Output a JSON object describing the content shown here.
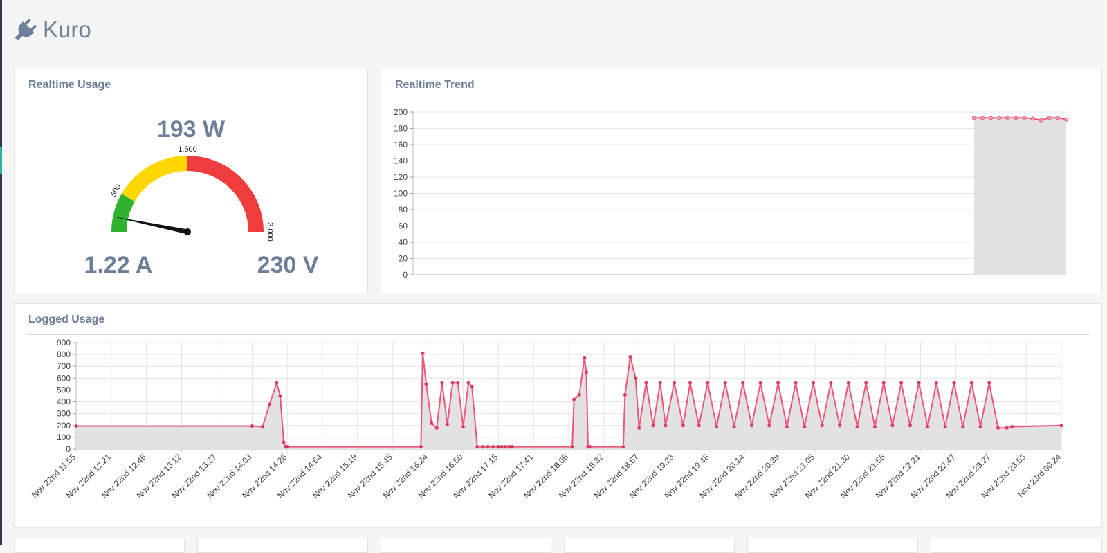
{
  "app": {
    "title": "Kuro",
    "logo_icon": "plug-icon"
  },
  "realtime_usage": {
    "title": "Realtime Usage",
    "power": "193 W",
    "current": "1.22 A",
    "voltage": "230 V",
    "gauge": {
      "value": 193,
      "min": 0,
      "max": 3000,
      "ticks": [
        "500",
        "1,500",
        "3,000"
      ],
      "bands": [
        {
          "from": 0,
          "to": 500,
          "color": "#2fb32f"
        },
        {
          "from": 500,
          "to": 1500,
          "color": "#ffd700"
        },
        {
          "from": 1500,
          "to": 3000,
          "color": "#ef3c3c"
        }
      ]
    }
  },
  "realtime_trend": {
    "title": "Realtime Trend",
    "chart_data": {
      "type": "area",
      "ylim": [
        0,
        200
      ],
      "yticks": [
        0,
        20,
        40,
        60,
        80,
        100,
        120,
        140,
        160,
        180,
        200
      ],
      "x": [
        0,
        1,
        2,
        3,
        4,
        5,
        6,
        7,
        8,
        9,
        10,
        11
      ],
      "xlim": [
        -67,
        11
      ],
      "values": [
        193,
        193,
        193,
        193,
        193,
        193,
        193,
        192,
        190,
        193,
        193,
        191
      ],
      "grid": true,
      "color": "#ee5577",
      "fill": "#e2e2e2"
    }
  },
  "logged_usage": {
    "title": "Logged Usage",
    "chart_data": {
      "type": "area",
      "ylim": [
        0,
        900
      ],
      "yticks": [
        0,
        100,
        200,
        300,
        400,
        500,
        600,
        700,
        800,
        900
      ],
      "x_ticks": [
        "Nov 22nd 11:55",
        "Nov 22nd 12:21",
        "Nov 22nd 12:46",
        "Nov 22nd 13:12",
        "Nov 22nd 13:37",
        "Nov 22nd 14:03",
        "Nov 22nd 14:28",
        "Nov 22nd 14:54",
        "Nov 22nd 15:19",
        "Nov 22nd 15:45",
        "Nov 22nd 16:24",
        "Nov 22nd 16:50",
        "Nov 22nd 17:15",
        "Nov 22nd 17:41",
        "Nov 22nd 18:06",
        "Nov 22nd 18:32",
        "Nov 22nd 18:57",
        "Nov 22nd 19:23",
        "Nov 22nd 19:48",
        "Nov 22nd 20:14",
        "Nov 22nd 20:39",
        "Nov 22nd 21:05",
        "Nov 22nd 21:30",
        "Nov 22nd 21:56",
        "Nov 22nd 22:21",
        "Nov 22nd 22:47",
        "Nov 22nd 23:27",
        "Nov 22nd 23:53",
        "Nov 23rd 00:24"
      ],
      "x": [
        0,
        5,
        5.3,
        5.5,
        5.7,
        5.8,
        5.9,
        5.95,
        6,
        9.8,
        9.85,
        9.95,
        10.1,
        10.25,
        10.4,
        10.55,
        10.7,
        10.85,
        11.0,
        11.15,
        11.25,
        11.4,
        11.55,
        11.7,
        11.85,
        12.0,
        12.1,
        12.2,
        12.3,
        12.35,
        12.4,
        14.1,
        14.15,
        14.3,
        14.45,
        14.5,
        14.55,
        14.6,
        15.55,
        15.6,
        15.75,
        15.9,
        16.0,
        16.2,
        16.4,
        16.6,
        16.75,
        17.0,
        17.25,
        17.45,
        17.7,
        17.95,
        18.2,
        18.45,
        18.7,
        18.95,
        19.2,
        19.45,
        19.7,
        19.95,
        20.2,
        20.45,
        20.7,
        20.95,
        21.2,
        21.45,
        21.7,
        21.95,
        22.2,
        22.45,
        22.7,
        22.95,
        23.2,
        23.45,
        23.7,
        23.95,
        24.2,
        24.45,
        24.7,
        24.95,
        25.2,
        25.45,
        25.7,
        25.95,
        26.2,
        26.45,
        26.6,
        28
      ],
      "values": [
        195,
        195,
        190,
        380,
        560,
        450,
        60,
        20,
        20,
        20,
        810,
        550,
        220,
        180,
        560,
        210,
        560,
        560,
        190,
        560,
        530,
        20,
        20,
        20,
        20,
        20,
        20,
        20,
        20,
        20,
        20,
        20,
        420,
        460,
        770,
        650,
        20,
        20,
        20,
        460,
        780,
        600,
        180,
        560,
        200,
        560,
        200,
        560,
        200,
        560,
        200,
        560,
        190,
        560,
        190,
        560,
        200,
        560,
        200,
        560,
        190,
        560,
        190,
        560,
        200,
        560,
        200,
        560,
        190,
        560,
        190,
        560,
        200,
        560,
        200,
        560,
        190,
        560,
        190,
        560,
        190,
        560,
        190,
        560,
        180,
        180,
        190,
        200
      ],
      "xlim": [
        0,
        28
      ],
      "grid": true,
      "color": "#ee5577",
      "fill": "#e2e2e2"
    }
  }
}
